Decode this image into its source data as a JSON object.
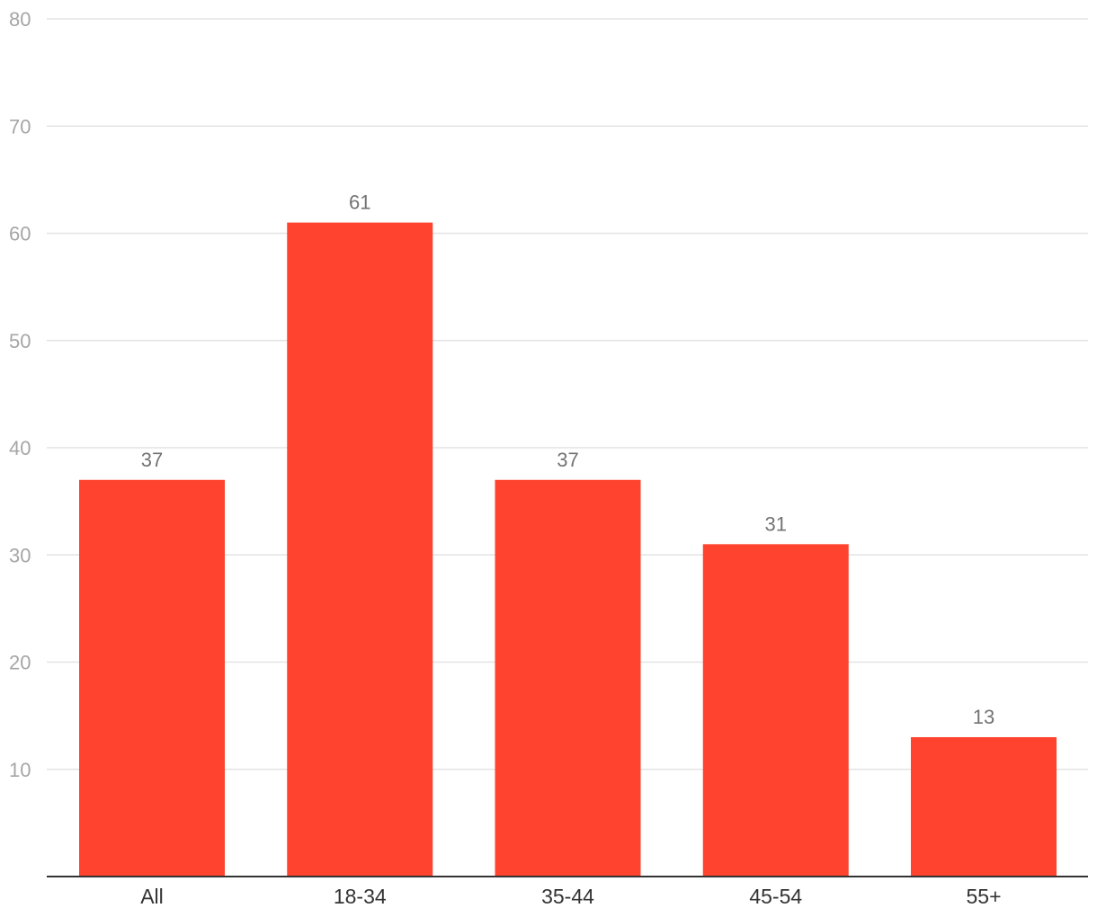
{
  "chart_data": {
    "type": "bar",
    "categories": [
      "All",
      "18-34",
      "35-44",
      "45-54",
      "55+"
    ],
    "series": [
      {
        "values": [
          37,
          61,
          37,
          31,
          13
        ]
      }
    ],
    "data_labels": [
      "37",
      "61",
      "37",
      "31",
      "13"
    ],
    "y_ticks": [
      10,
      20,
      30,
      40,
      50,
      60,
      70,
      80
    ],
    "y_tick_labels": [
      "10",
      "20",
      "30",
      "40",
      "50",
      "60",
      "70",
      "80"
    ],
    "ylim": [
      0,
      80
    ],
    "title": "",
    "xlabel": "",
    "ylabel": "",
    "grid": true,
    "legend": "none",
    "colors": {
      "bar": "#ff432e",
      "grid": "#e3e3e3",
      "baseline": "#333333"
    }
  }
}
